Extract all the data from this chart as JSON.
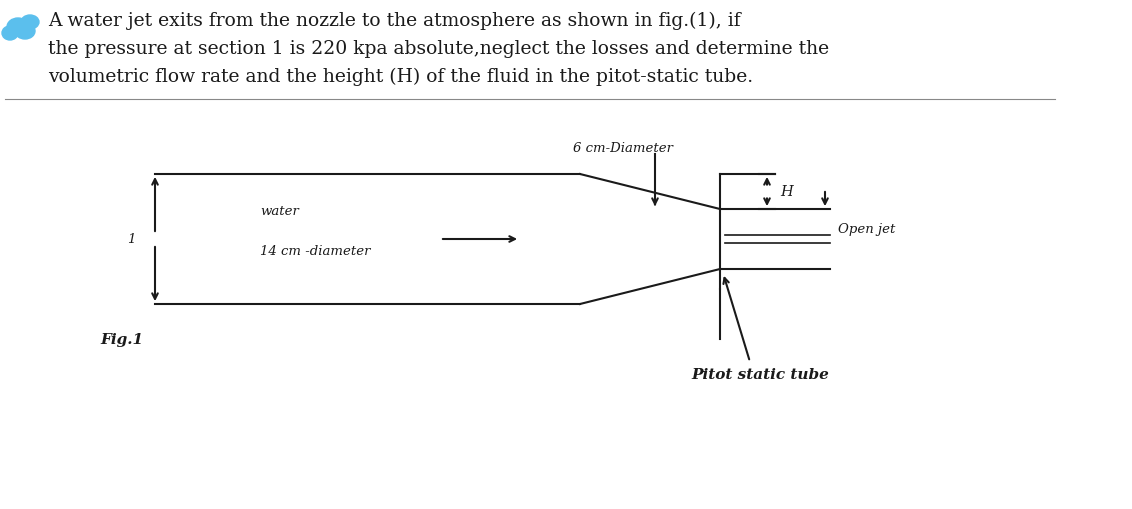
{
  "fig_label": "Fig.1",
  "label_1": "1",
  "label_water": "water",
  "label_14cm": "14 cm -diameter",
  "label_6cm": "6 cm-Diameter",
  "label_H": "H",
  "label_open_jet": "Open jet",
  "label_pitot": "Pitot static tube",
  "bg_color": "#ffffff",
  "line_color": "#1a1a1a",
  "text_color": "#1a1a1a",
  "title_line1": "A water jet exits from the nozzle to the atmosphere as shown in fig.(1), if",
  "title_line2": "the pressure at section 1 is 220 kpa absolute,neglect the losses and determine the",
  "title_line3": "volumetric flow rate and the height (H) of the fluid in the pitot-static tube.",
  "title_fontsize": 13.5,
  "label_fontsize": 9.5,
  "fig_fontsize": 11
}
